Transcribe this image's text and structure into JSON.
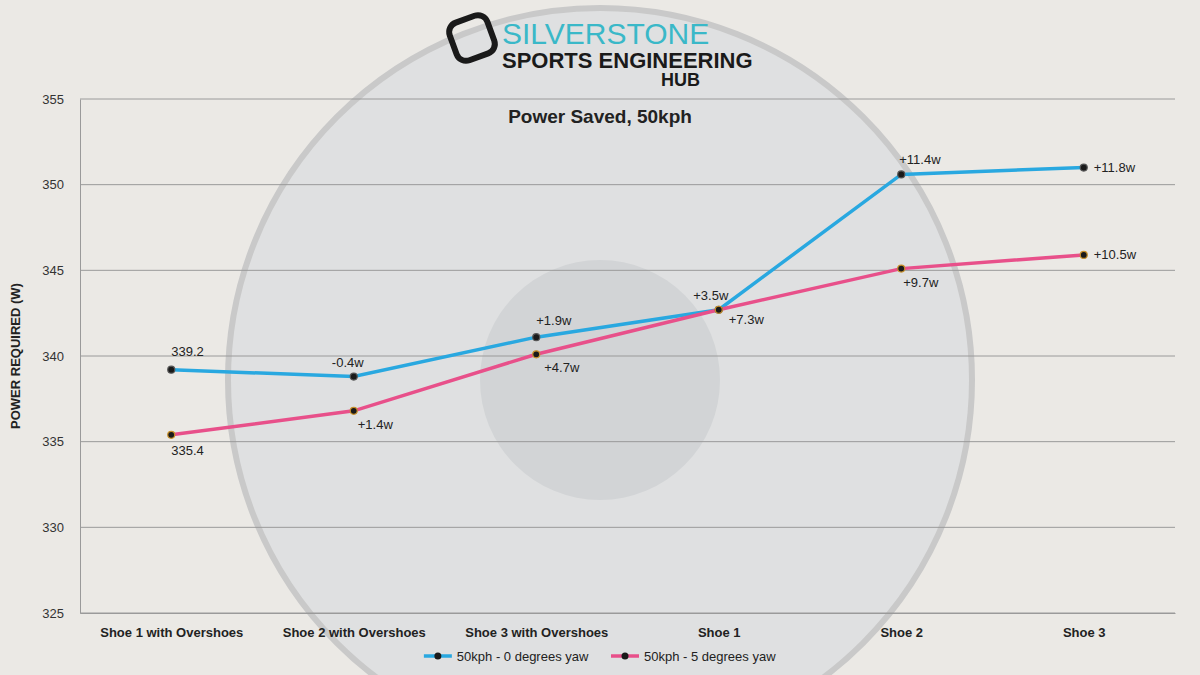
{
  "logo": {
    "lines": [
      "SILVERSTONE",
      "SPORTS ENGINEERING",
      "HUB"
    ]
  },
  "chart_data": {
    "type": "line",
    "title": "Power Saved, 50kph",
    "y_label": "POWER REQUIRED (W)",
    "categories": [
      "Shoe 1 with Overshoes",
      "Shoe 2 with Overshoes",
      "Shoe 3 with Overshoes",
      "Shoe 1",
      "Shoe 2",
      "Shoe 3"
    ],
    "series": [
      {
        "name": "50kph - 0 degrees yaw",
        "color": "#29a8e0",
        "marker": "circle",
        "values": [
          339.2,
          338.8,
          341.1,
          342.7,
          350.6,
          351.0
        ],
        "annotations": [
          "339.2",
          "-0.4w",
          "+1.9w",
          "+3.5w",
          "+11.4w",
          "+11.8w"
        ]
      },
      {
        "name": "50kph - 5 degrees yaw",
        "color": "#e8508a",
        "marker": "circle",
        "values": [
          335.4,
          336.8,
          340.1,
          342.7,
          345.1,
          345.9
        ],
        "annotations": [
          "335.4",
          "+1.4w",
          "+4.7w",
          "+7.3w",
          "+9.7w",
          "+10.5w"
        ]
      }
    ],
    "ylim": [
      325,
      355
    ],
    "yticks": [
      325,
      330,
      335,
      340,
      345,
      350,
      355
    ],
    "grid": true,
    "legend": "bottom"
  }
}
